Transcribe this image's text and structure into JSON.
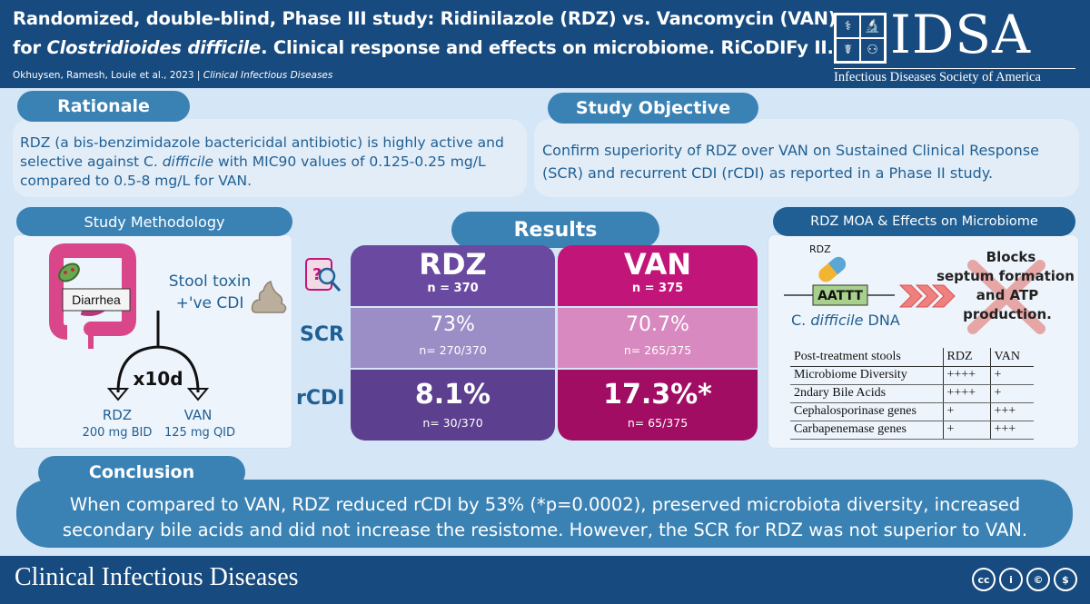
{
  "header": {
    "title_line1": "Randomized, double-blind, Phase III study: Ridinilazole (RDZ) vs. Vancomycin (VAN)",
    "title_line2_a": "for ",
    "title_line2_italic": "Clostridioides difficile",
    "title_line2_b": ".  Clinical response and effects on microbiome. RiCoDIFy II.",
    "authors": "Okhuysen, Ramesh, Louie et al., 2023 | ",
    "journal_italic": "Clinical Infectious Diseases",
    "logo_word": "IDSA",
    "logo_full": "Infectious Diseases Society of America"
  },
  "rationale": {
    "heading": "Rationale",
    "text_a": "RDZ (a bis-benzimidazole bactericidal antibiotic) is highly active and selective against C. ",
    "text_italic": "difficile",
    "text_b": " with MIC90 values of 0.125-0.25 mg/L compared to 0.5-8 mg/L for VAN."
  },
  "objective": {
    "heading": "Study Objective",
    "text": "Confirm superiority of RDZ over VAN on Sustained Clinical Response (SCR) and recurrent CDI (rCDI) as reported in a Phase II study."
  },
  "methodology": {
    "heading": "Study Methodology",
    "diarrhea": "Diarrhea",
    "toxin_line1": "Stool toxin",
    "toxin_line2": "+'ve CDI",
    "duration": "x10d",
    "arm1_name": "RDZ",
    "arm1_dose": "200 mg BID",
    "arm2_name": "VAN",
    "arm2_dose": "125 mg QID"
  },
  "results": {
    "heading": "Results",
    "rows": [
      "SCR",
      "rCDI"
    ],
    "rdz": {
      "name": "RDZ",
      "n": "n = 370",
      "scr": "73%",
      "scr_n": "n= 270/370",
      "rcdi": "8.1%",
      "rcdi_n": "n= 30/370"
    },
    "van": {
      "name": "VAN",
      "n": "n = 375",
      "scr": "70.7%",
      "scr_n": "n= 265/375",
      "rcdi": "17.3%*",
      "rcdi_n": "n= 65/375"
    }
  },
  "moa": {
    "heading": "RDZ MOA & Effects on Microbiome",
    "rdz_label": "RDZ",
    "dna_seq": "AATTT",
    "dna_label_a": "C. ",
    "dna_label_italic": "difficile",
    "dna_label_b": " DNA",
    "blocks_line1": "Blocks",
    "blocks_line2": "septum formation",
    "blocks_line3": "and ATP",
    "blocks_line4": "production.",
    "table_header": [
      "Post-treatment stools",
      "RDZ",
      "VAN"
    ],
    "table_rows": [
      [
        "Microbiome Diversity",
        "++++",
        "+"
      ],
      [
        "2ndary Bile Acids",
        "++++",
        "+"
      ],
      [
        "Cephalosporinase genes",
        "+",
        "+++"
      ],
      [
        "Carbapenemase genes",
        "+",
        "+++"
      ]
    ]
  },
  "conclusion": {
    "heading": "Conclusion",
    "text": "When compared to VAN, RDZ reduced rCDI by 53% (*p=0.0002), preserved microbiota diversity, increased secondary bile acids and did not increase the resistome.  However, the SCR for RDZ was not superior to VAN."
  },
  "footer": {
    "journal": "Clinical Infectious Diseases",
    "license_icons": [
      "cc",
      "i",
      "©",
      "$"
    ]
  },
  "colors": {
    "navy": "#174a7e",
    "blue": "#3b82b4",
    "rdz_purple": "#6a4aa0",
    "van_magenta": "#c2157a",
    "panel": "#e2edf8"
  }
}
